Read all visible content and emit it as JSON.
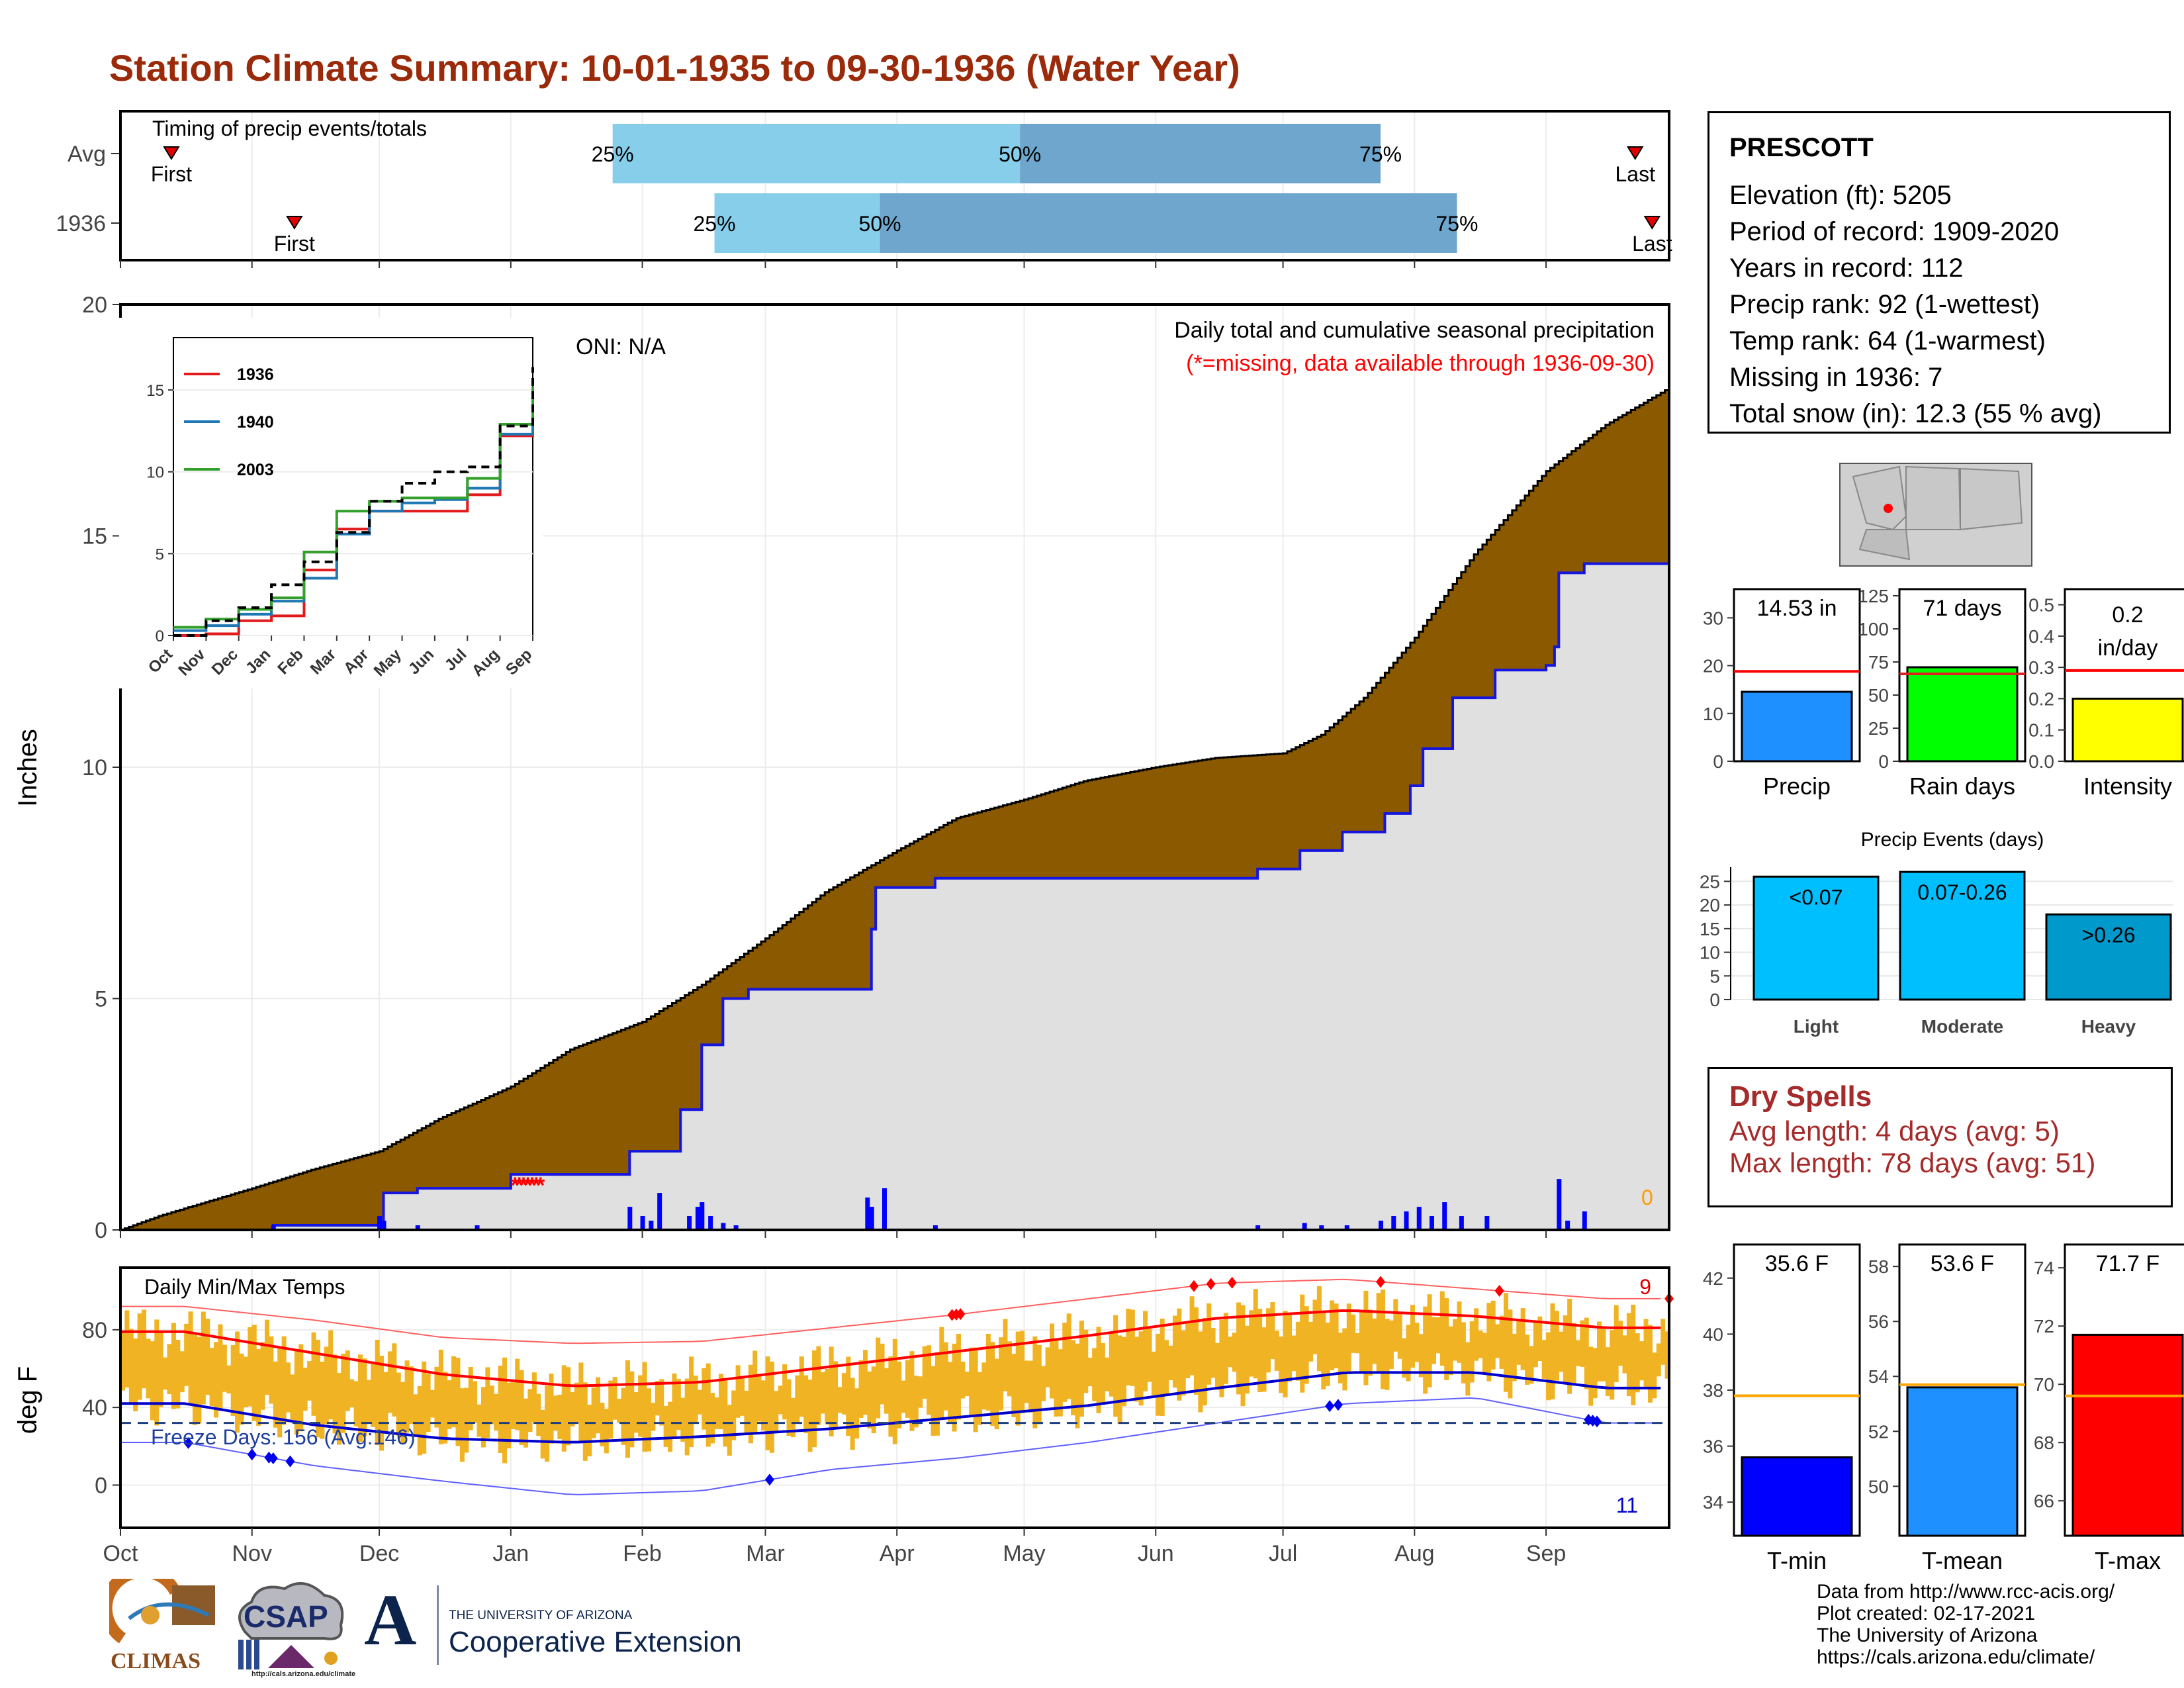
{
  "page": {
    "title": "Station Climate Summary: 10-01-1935 to 09-30-1936 (Water Year)",
    "credits": [
      "Data from http://www.rcc-acis.org/",
      "Plot created: 02-17-2021",
      "The University of Arizona",
      "https://cals.arizona.edu/climate/"
    ],
    "logos": {
      "climas": "CLIMAS",
      "csap": "CSAP",
      "csap_url": "http://cals.arizona.edu/climate",
      "ua_small": "THE UNIVERSITY OF ARIZONA",
      "ua_big": "Cooperative Extension",
      "ua_letter": "A"
    }
  },
  "station": {
    "name": "PRESCOTT",
    "lines": [
      "Elevation (ft): 5205",
      "Period of record: 1909-2020",
      "Years in record: 112",
      "Precip rank: 92 (1-wettest)",
      "Temp rank: 64 (1-warmest)",
      "Missing in 1936: 7",
      "Total snow (in): 12.3 (55 % avg)"
    ]
  },
  "dry_spells": {
    "title": "Dry Spells",
    "avg_line": "Avg length: 4 days (avg: 5)",
    "max_line": "Max length: 78 days (avg: 51)"
  },
  "colors": {
    "title": "#9a2a0a",
    "brown": "#8b5a00",
    "cum_fill": "#e0e0e0",
    "bar_blue": "#0000ff",
    "light_blue": "#87ceeb",
    "mid_blue": "#6ea6cd",
    "temp_bar": "#f0b323",
    "dry_red": "#a52a2a"
  },
  "chart_data": [
    {
      "id": "timing",
      "type": "bar",
      "title": "Timing of precip events/totals",
      "rows": [
        {
          "label": "Avg",
          "first": "Oct 13",
          "p25": "Jan 25",
          "p50": "Apr 30",
          "p75": "Jul 24",
          "last": "Sep 22"
        },
        {
          "label": "1936",
          "first": "Nov 11",
          "p25": "Feb 18",
          "p50": "Mar 28",
          "p75": "Aug 11",
          "last": "Sep 26"
        }
      ],
      "marker_labels": {
        "first": "First",
        "last": "Last",
        "p25": "25%",
        "p50": "50%",
        "p75": "75%"
      }
    },
    {
      "id": "precip_main",
      "type": "area",
      "title": "Daily total and cumulative seasonal precipitation",
      "subtitle": "(*=missing, data available through 1936-09-30)",
      "oni": "ONI: N/A",
      "ylabel": "Inches",
      "ylim": [
        0,
        20
      ],
      "yticks": [
        0,
        5,
        10,
        15,
        20
      ],
      "xticks": [
        "Oct",
        "Nov",
        "Dec",
        "Jan",
        "Feb",
        "Mar",
        "Apr",
        "May",
        "Jun",
        "Jul",
        "Aug",
        "Sep"
      ],
      "corner_count": "0",
      "avg_cumulative": [
        {
          "x": "1935-10-01",
          "y": 0.0
        },
        {
          "x": "1935-10-10",
          "y": 0.3
        },
        {
          "x": "1935-11-01",
          "y": 0.9
        },
        {
          "x": "1935-11-15",
          "y": 1.3
        },
        {
          "x": "1935-12-01",
          "y": 1.7
        },
        {
          "x": "1935-12-15",
          "y": 2.4
        },
        {
          "x": "1936-01-01",
          "y": 3.1
        },
        {
          "x": "1936-01-15",
          "y": 3.9
        },
        {
          "x": "1936-02-01",
          "y": 4.5
        },
        {
          "x": "1936-02-15",
          "y": 5.3
        },
        {
          "x": "1936-03-01",
          "y": 6.3
        },
        {
          "x": "1936-03-15",
          "y": 7.3
        },
        {
          "x": "1936-04-01",
          "y": 8.2
        },
        {
          "x": "1936-04-15",
          "y": 8.9
        },
        {
          "x": "1936-05-01",
          "y": 9.3
        },
        {
          "x": "1936-05-15",
          "y": 9.7
        },
        {
          "x": "1936-06-01",
          "y": 10.0
        },
        {
          "x": "1936-06-15",
          "y": 10.2
        },
        {
          "x": "1936-07-01",
          "y": 10.3
        },
        {
          "x": "1936-07-10",
          "y": 10.7
        },
        {
          "x": "1936-07-20",
          "y": 11.5
        },
        {
          "x": "1936-08-01",
          "y": 12.8
        },
        {
          "x": "1936-08-15",
          "y": 14.6
        },
        {
          "x": "1936-09-01",
          "y": 16.4
        },
        {
          "x": "1936-09-15",
          "y": 17.4
        },
        {
          "x": "1936-09-30",
          "y": 18.2
        }
      ],
      "year_cumulative": [
        {
          "x": "1935-10-01",
          "y": 0.0
        },
        {
          "x": "1935-11-06",
          "y": 0.1
        },
        {
          "x": "1935-12-01",
          "y": 0.1
        },
        {
          "x": "1935-12-02",
          "y": 0.8
        },
        {
          "x": "1935-12-10",
          "y": 0.9
        },
        {
          "x": "1936-01-01",
          "y": 1.2
        },
        {
          "x": "1936-01-28",
          "y": 1.2
        },
        {
          "x": "1936-01-29",
          "y": 1.7
        },
        {
          "x": "1936-02-10",
          "y": 2.6
        },
        {
          "x": "1936-02-15",
          "y": 4.0
        },
        {
          "x": "1936-02-20",
          "y": 5.0
        },
        {
          "x": "1936-02-26",
          "y": 5.2
        },
        {
          "x": "1936-03-25",
          "y": 5.2
        },
        {
          "x": "1936-03-26",
          "y": 6.5
        },
        {
          "x": "1936-03-27",
          "y": 7.4
        },
        {
          "x": "1936-04-10",
          "y": 7.6
        },
        {
          "x": "1936-06-20",
          "y": 7.6
        },
        {
          "x": "1936-06-25",
          "y": 7.8
        },
        {
          "x": "1936-07-05",
          "y": 8.2
        },
        {
          "x": "1936-07-15",
          "y": 8.6
        },
        {
          "x": "1936-07-25",
          "y": 9.0
        },
        {
          "x": "1936-07-31",
          "y": 9.6
        },
        {
          "x": "1936-08-03",
          "y": 10.4
        },
        {
          "x": "1936-08-10",
          "y": 11.5
        },
        {
          "x": "1936-08-20",
          "y": 12.1
        },
        {
          "x": "1936-09-01",
          "y": 12.2
        },
        {
          "x": "1936-09-03",
          "y": 12.6
        },
        {
          "x": "1936-09-04",
          "y": 14.2
        },
        {
          "x": "1936-09-10",
          "y": 14.4
        },
        {
          "x": "1936-09-30",
          "y": 14.5
        }
      ],
      "daily_bars": [
        {
          "x": "1935-11-06",
          "y": 0.1
        },
        {
          "x": "1935-12-01",
          "y": 0.3
        },
        {
          "x": "1935-12-02",
          "y": 0.2
        },
        {
          "x": "1935-12-10",
          "y": 0.1
        },
        {
          "x": "1935-12-24",
          "y": 0.1
        },
        {
          "x": "1936-01-29",
          "y": 0.5
        },
        {
          "x": "1936-02-01",
          "y": 0.3
        },
        {
          "x": "1936-02-03",
          "y": 0.2
        },
        {
          "x": "1936-02-05",
          "y": 0.8
        },
        {
          "x": "1936-02-12",
          "y": 0.3
        },
        {
          "x": "1936-02-14",
          "y": 0.5
        },
        {
          "x": "1936-02-15",
          "y": 0.6
        },
        {
          "x": "1936-02-17",
          "y": 0.3
        },
        {
          "x": "1936-02-20",
          "y": 0.15
        },
        {
          "x": "1936-02-23",
          "y": 0.1
        },
        {
          "x": "1936-03-25",
          "y": 0.7
        },
        {
          "x": "1936-03-26",
          "y": 0.5
        },
        {
          "x": "1936-03-29",
          "y": 0.9
        },
        {
          "x": "1936-04-10",
          "y": 0.1
        },
        {
          "x": "1936-06-25",
          "y": 0.1
        },
        {
          "x": "1936-07-06",
          "y": 0.15
        },
        {
          "x": "1936-07-10",
          "y": 0.1
        },
        {
          "x": "1936-07-16",
          "y": 0.1
        },
        {
          "x": "1936-07-24",
          "y": 0.2
        },
        {
          "x": "1936-07-27",
          "y": 0.3
        },
        {
          "x": "1936-07-30",
          "y": 0.4
        },
        {
          "x": "1936-08-02",
          "y": 0.5
        },
        {
          "x": "1936-08-05",
          "y": 0.3
        },
        {
          "x": "1936-08-08",
          "y": 0.6
        },
        {
          "x": "1936-08-12",
          "y": 0.3
        },
        {
          "x": "1936-08-18",
          "y": 0.3
        },
        {
          "x": "1936-09-04",
          "y": 1.1
        },
        {
          "x": "1936-09-06",
          "y": 0.2
        },
        {
          "x": "1936-09-10",
          "y": 0.4
        }
      ],
      "missing_markers": [
        "1936-01-02",
        "1936-01-03",
        "1936-01-04",
        "1936-01-05",
        "1936-01-06",
        "1936-01-07",
        "1936-01-08"
      ]
    },
    {
      "id": "inset",
      "type": "line",
      "xticks": [
        "Oct",
        "Nov",
        "Dec",
        "Jan",
        "Feb",
        "Mar",
        "Apr",
        "May",
        "Jun",
        "Jul",
        "Aug",
        "Sep"
      ],
      "yticks": [
        0,
        5,
        10,
        15
      ],
      "ylim": [
        0,
        18.2
      ],
      "series": [
        {
          "name": "1936",
          "color": "#e31a1c",
          "values": [
            0.0,
            0.1,
            0.9,
            1.2,
            4.0,
            6.5,
            7.6,
            7.6,
            7.6,
            8.6,
            12.2,
            14.5
          ]
        },
        {
          "name": "1940",
          "color": "#1f78b4",
          "values": [
            0.3,
            0.6,
            1.3,
            2.1,
            3.5,
            6.2,
            7.6,
            8.1,
            8.3,
            9.0,
            12.3,
            14.7
          ]
        },
        {
          "name": "2003",
          "color": "#33a02c",
          "values": [
            0.5,
            1.0,
            1.6,
            2.3,
            5.1,
            7.6,
            8.2,
            8.4,
            8.4,
            9.6,
            12.9,
            15.2
          ]
        },
        {
          "name": "",
          "color": "#000000",
          "dashed": true,
          "values": [
            0.0,
            0.9,
            1.7,
            3.1,
            4.5,
            6.3,
            8.2,
            9.3,
            10.0,
            10.3,
            12.8,
            16.4
          ]
        }
      ]
    },
    {
      "id": "temps",
      "type": "bar",
      "title": "Daily Min/Max Temps",
      "ylabel": "deg F",
      "yticks": [
        0,
        40,
        80
      ],
      "ylim": [
        -22,
        112
      ],
      "xticks": [
        "Oct",
        "Nov",
        "Dec",
        "Jan",
        "Feb",
        "Mar",
        "Apr",
        "May",
        "Jun",
        "Jul",
        "Aug",
        "Sep"
      ],
      "freeze_label": "Freeze Days: 156 (Avg:146)",
      "freeze_line": 32,
      "hot_count": "9",
      "cold_count": "11",
      "monthly_avg_max": [
        79,
        68,
        57,
        51,
        53,
        61,
        69,
        77,
        86,
        90,
        87,
        81
      ],
      "monthly_avg_min": [
        42,
        31,
        24,
        22,
        25,
        29,
        35,
        41,
        50,
        58,
        58,
        50
      ],
      "monthly_record_max": [
        92,
        85,
        76,
        73,
        74,
        81,
        88,
        96,
        104,
        106,
        101,
        96
      ],
      "monthly_record_min": [
        22,
        10,
        2,
        -5,
        -3,
        8,
        14,
        22,
        32,
        42,
        45,
        32
      ],
      "hot_record_days": [
        "1936-04-14",
        "1936-04-15",
        "1936-04-16",
        "1936-06-10",
        "1936-06-14",
        "1936-06-19",
        "1936-07-24",
        "1936-08-21",
        "1936-09-30"
      ],
      "cold_record_days": [
        "1935-10-17",
        "1935-11-01",
        "1935-11-05",
        "1935-11-06",
        "1935-11-10",
        "1936-03-02",
        "1936-07-12",
        "1936-07-14",
        "1936-09-11",
        "1936-09-12",
        "1936-09-13"
      ]
    },
    {
      "id": "total_precip",
      "type": "bar",
      "label": "14.53 in",
      "categories": [
        "Precip"
      ],
      "values": [
        14.53
      ],
      "avg": 18.8,
      "yticks": [
        0,
        10,
        20,
        30
      ],
      "ylim": [
        0,
        36
      ]
    },
    {
      "id": "rain_days",
      "type": "bar",
      "label": "71 days",
      "categories": [
        "Rain days"
      ],
      "values": [
        71
      ],
      "avg": 66,
      "yticks": [
        0,
        25,
        50,
        75,
        100,
        125
      ],
      "ylim": [
        0,
        130
      ]
    },
    {
      "id": "intensity",
      "type": "bar",
      "label": "0.2 in/day",
      "categories": [
        "Intensity"
      ],
      "values": [
        0.2
      ],
      "avg": 0.29,
      "yticks": [
        "0.0",
        "0.1",
        "0.2",
        "0.3",
        "0.4",
        "0.5"
      ],
      "ylim": [
        0,
        0.55
      ]
    },
    {
      "id": "events",
      "type": "bar",
      "title": "Precip Events (days)",
      "categories": [
        "Light",
        "Moderate",
        "Heavy"
      ],
      "values": [
        26,
        27,
        18
      ],
      "labels": [
        "<0.07",
        "0.07-0.26",
        ">0.26"
      ],
      "yticks": [
        0,
        5,
        10,
        15,
        20,
        25
      ],
      "ylim": [
        0,
        28
      ]
    },
    {
      "id": "tmin",
      "type": "bar",
      "label": "35.6 F",
      "categories": [
        "T-min"
      ],
      "values": [
        35.6
      ],
      "avg": 37.8,
      "yticks": [
        34,
        36,
        38,
        40,
        42
      ],
      "ylim": [
        32.8,
        43.2
      ]
    },
    {
      "id": "tmean",
      "type": "bar",
      "label": "53.6 F",
      "categories": [
        "T-mean"
      ],
      "values": [
        53.6
      ],
      "avg": 53.7,
      "yticks": [
        50,
        52,
        54,
        56,
        58
      ],
      "ylim": [
        48.2,
        58.8
      ]
    },
    {
      "id": "tmax",
      "type": "bar",
      "label": "71.7 F",
      "categories": [
        "T-max"
      ],
      "values": [
        71.7
      ],
      "avg": 69.6,
      "yticks": [
        66,
        68,
        70,
        72,
        74
      ],
      "ylim": [
        64.8,
        74.8
      ]
    }
  ]
}
